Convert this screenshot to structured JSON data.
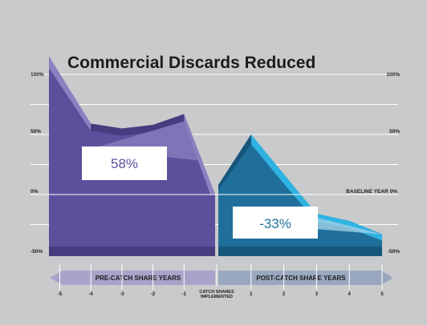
{
  "chart_data": {
    "type": "area",
    "title": "Commercial Discards Reduced",
    "y_tick_labels": [
      "100%",
      "50%",
      "0%",
      "-50%"
    ],
    "y_ticks": [
      100,
      50,
      0,
      -50
    ],
    "ylim": [
      -50,
      115
    ],
    "x_ticks": [
      "-5",
      "-4",
      "-3",
      "-2",
      "-1",
      "1",
      "2",
      "3",
      "4",
      "5"
    ],
    "baseline_label": "BASELINE YEAR  0%",
    "center_label_line1": "CATCH SHARES",
    "center_label_line2": "IMPLEMENTED",
    "pre_period": {
      "label": "PRE-CATCH SHARE YEARS",
      "percent_change": "58%",
      "x": [
        -5.35,
        -4,
        -3,
        -2,
        -1,
        0
      ],
      "y": [
        115,
        59,
        55,
        58,
        67,
        0
      ]
    },
    "post_period": {
      "label": "POST-CATCH SHARE YEARS",
      "percent_change": "-33%",
      "x": [
        0,
        1,
        2,
        3,
        4,
        5
      ],
      "y": [
        8,
        50,
        17,
        -16,
        -22,
        -33
      ]
    },
    "colors": {
      "pre_main": "#5c4f9c",
      "pre_light": "#8b80c0",
      "pre_dark": "#483c80",
      "post_main": "#1f6f9a",
      "post_light": "#2fb3e3",
      "post_dark": "#16567a",
      "grid": "#ffffff",
      "background": "#c9cacc"
    }
  }
}
